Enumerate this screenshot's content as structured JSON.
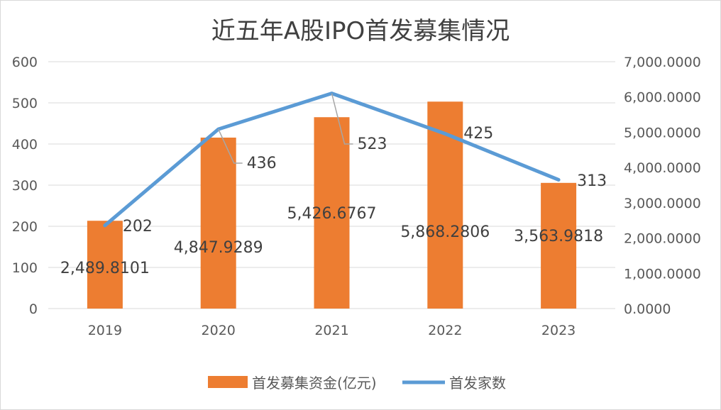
{
  "chart_data": {
    "type": "bar",
    "title": "近五年A股IPO首发募集情况",
    "categories": [
      "2019",
      "2020",
      "2021",
      "2022",
      "2023"
    ],
    "series": [
      {
        "name": "首发募集资金(亿元)",
        "type": "bar",
        "axis": "right",
        "color": "#ED7D31",
        "values": [
          2489.8101,
          4847.9289,
          5426.6767,
          5868.2806,
          3563.9818
        ],
        "labels": [
          "2,489.8101",
          "4,847.9289",
          "5,426.6767",
          "5,868.2806",
          "3,563.9818"
        ]
      },
      {
        "name": "首发家数",
        "type": "line",
        "axis": "left",
        "color": "#5B9BD5",
        "values": [
          202,
          436,
          523,
          425,
          313
        ],
        "labels": [
          "202",
          "436",
          "523",
          "425",
          "313"
        ]
      }
    ],
    "y_left": {
      "ylim": [
        0,
        600
      ],
      "ticks": [
        "0",
        "100",
        "200",
        "300",
        "400",
        "500",
        "600"
      ]
    },
    "y_right": {
      "ylim": [
        0,
        7000
      ],
      "ticks": [
        "0.0000",
        "1,000.0000",
        "2,000.0000",
        "3,000.0000",
        "4,000.0000",
        "5,000.0000",
        "6,000.0000",
        "7,000.0000"
      ]
    },
    "gridlines": true,
    "legend_position": "bottom",
    "legend": [
      "首发募集资金(亿元)",
      "首发家数"
    ]
  }
}
